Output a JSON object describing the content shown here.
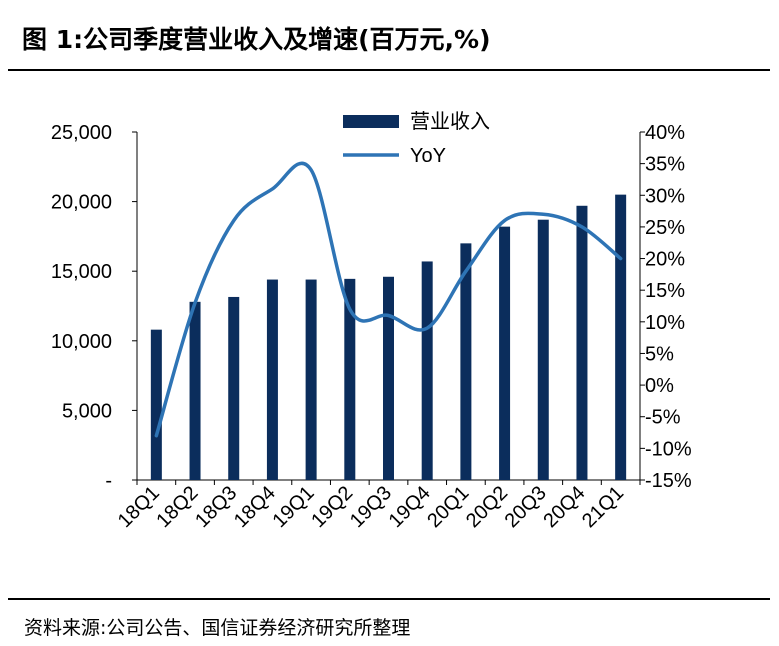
{
  "header": {
    "title": "图 1:公司季度营业收入及增速(百万元,%)"
  },
  "footer": {
    "source": "资料来源:公司公告、国信证券经济研究所整理"
  },
  "colors": {
    "bar": "#0b2d5c",
    "line": "#2e74b5",
    "axis": "#000000"
  },
  "chart_data": {
    "type": "bar+line",
    "categories": [
      "18Q1",
      "18Q2",
      "18Q3",
      "18Q4",
      "19Q1",
      "19Q2",
      "19Q3",
      "19Q4",
      "20Q1",
      "20Q2",
      "20Q3",
      "20Q4",
      "21Q1"
    ],
    "series": [
      {
        "name": "营业收入",
        "type": "bar",
        "axis": "left",
        "values": [
          10800,
          12800,
          13150,
          14400,
          14400,
          14450,
          14600,
          15700,
          17000,
          18200,
          18700,
          19700,
          20500
        ]
      },
      {
        "name": "YoY",
        "type": "line",
        "axis": "right",
        "values": [
          -8,
          13,
          26,
          31,
          34,
          12,
          11,
          9,
          18,
          26,
          27,
          25,
          20
        ]
      }
    ],
    "y_left": {
      "min": 0,
      "max": 25000,
      "ticks": [
        "-",
        "5,000",
        "10,000",
        "15,000",
        "20,000",
        "25,000"
      ],
      "tick_values": [
        0,
        5000,
        10000,
        15000,
        20000,
        25000
      ]
    },
    "y_right": {
      "min": -15,
      "max": 40,
      "ticks": [
        "-15%",
        "-10%",
        "-5%",
        "0%",
        "5%",
        "10%",
        "15%",
        "20%",
        "25%",
        "30%",
        "35%",
        "40%"
      ],
      "tick_values": [
        -15,
        -10,
        -5,
        0,
        5,
        10,
        15,
        20,
        25,
        30,
        35,
        40
      ]
    },
    "legend": {
      "placement": "top-center",
      "entries": [
        "营业收入",
        "YoY"
      ]
    },
    "grid": false
  }
}
